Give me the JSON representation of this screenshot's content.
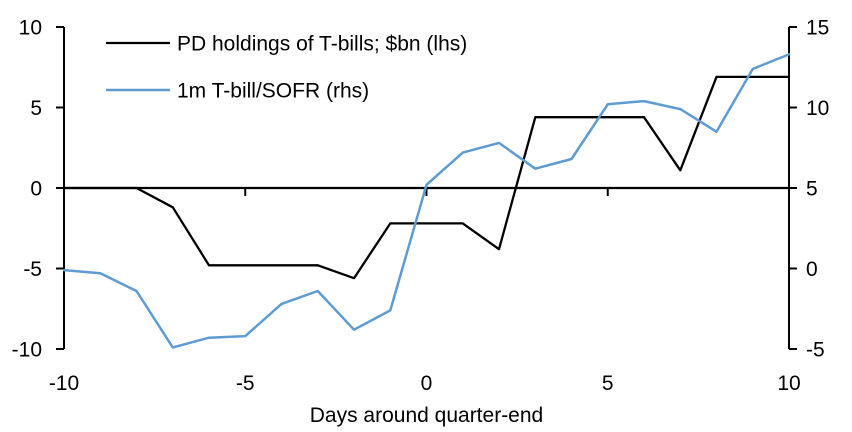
{
  "figure": {
    "background": "#FFFFFF",
    "text_color": "#000000"
  },
  "chart_data": {
    "type": "line",
    "title": "",
    "xlabel": "Days around quarter-end",
    "grid": false,
    "legend_position": "top-left",
    "x": [
      -10,
      -9,
      -8,
      -7,
      -6,
      -5,
      -4,
      -3,
      -2,
      -1,
      0,
      1,
      2,
      3,
      4,
      5,
      6,
      7,
      8,
      9,
      10
    ],
    "x_ticks": [
      -10,
      -5,
      0,
      5,
      10
    ],
    "left_axis": {
      "min": -10,
      "max": 10,
      "ticks": [
        10,
        5,
        0,
        -5,
        -10
      ]
    },
    "right_axis": {
      "min": -5,
      "max": 15,
      "ticks": [
        15,
        10,
        5,
        0,
        -5
      ]
    },
    "series": [
      {
        "name": "PD holdings of T-bills; $bn (lhs)",
        "axis": "left",
        "color": "#000000",
        "stroke_width": 2.3,
        "values": [
          0,
          0,
          0,
          -1.2,
          -4.8,
          -4.8,
          -4.8,
          -4.8,
          -5.6,
          -2.2,
          -2.2,
          -2.2,
          -3.8,
          4.4,
          4.4,
          4.4,
          4.4,
          1.1,
          6.9,
          6.9,
          6.9
        ]
      },
      {
        "name": "1m T-bill/SOFR (rhs)",
        "axis": "right",
        "color": "#5E9BD3",
        "stroke_width": 2.5,
        "values": [
          -0.1,
          -0.3,
          -1.4,
          -4.9,
          -4.3,
          -4.2,
          -2.2,
          -1.4,
          -3.8,
          -2.6,
          5.2,
          7.2,
          7.8,
          6.2,
          6.8,
          10.2,
          10.4,
          9.9,
          8.5,
          12.4,
          13.3
        ]
      }
    ]
  }
}
